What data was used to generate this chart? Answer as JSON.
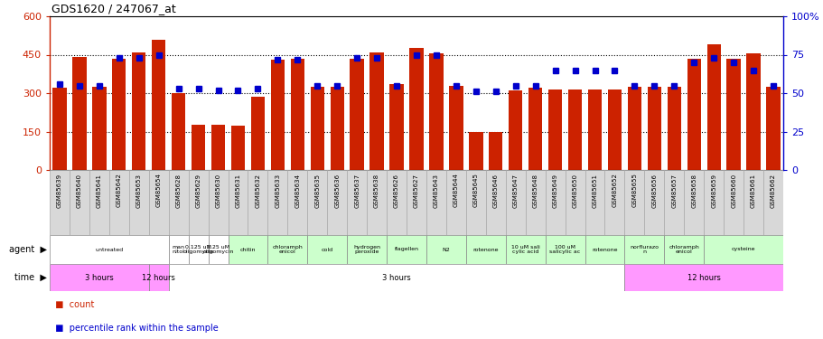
{
  "title": "GDS1620 / 247067_at",
  "samples": [
    "GSM85639",
    "GSM85640",
    "GSM85641",
    "GSM85642",
    "GSM85653",
    "GSM85654",
    "GSM85628",
    "GSM85629",
    "GSM85630",
    "GSM85631",
    "GSM85632",
    "GSM85633",
    "GSM85634",
    "GSM85635",
    "GSM85636",
    "GSM85637",
    "GSM85638",
    "GSM85626",
    "GSM85627",
    "GSM85643",
    "GSM85644",
    "GSM85645",
    "GSM85646",
    "GSM85647",
    "GSM85648",
    "GSM85649",
    "GSM85650",
    "GSM85651",
    "GSM85652",
    "GSM85655",
    "GSM85656",
    "GSM85657",
    "GSM85658",
    "GSM85659",
    "GSM85660",
    "GSM85661",
    "GSM85662"
  ],
  "counts": [
    320,
    440,
    325,
    435,
    460,
    510,
    300,
    175,
    178,
    172,
    285,
    430,
    435,
    325,
    325,
    435,
    460,
    335,
    475,
    455,
    330,
    148,
    148,
    310,
    320,
    315,
    315,
    315,
    315,
    325,
    325,
    325,
    435,
    490,
    435,
    455,
    325
  ],
  "percentiles": [
    56,
    55,
    55,
    73,
    73,
    75,
    53,
    53,
    52,
    52,
    53,
    72,
    72,
    55,
    55,
    73,
    73,
    55,
    75,
    75,
    55,
    51,
    51,
    55,
    55,
    65,
    65,
    65,
    65,
    55,
    55,
    55,
    70,
    73,
    70,
    65,
    55
  ],
  "bar_color": "#cc2200",
  "dot_color": "#0000cc",
  "yticks_left": [
    0,
    150,
    300,
    450,
    600
  ],
  "ytick_labels_left": [
    "0",
    "150",
    "300",
    "450",
    "600"
  ],
  "yticks_right": [
    0,
    25,
    50,
    75,
    100
  ],
  "ytick_labels_right": [
    "0",
    "25",
    "50",
    "75",
    "100%"
  ],
  "agent_groups": [
    {
      "label": "untreated",
      "start": 0,
      "end": 5,
      "color": "#ffffff"
    },
    {
      "label": "man\nnitol",
      "start": 6,
      "end": 6,
      "color": "#ffffff"
    },
    {
      "label": "0.125 uM\noligomycin",
      "start": 7,
      "end": 7,
      "color": "#ffffff"
    },
    {
      "label": "1.25 uM\noligomycin",
      "start": 8,
      "end": 8,
      "color": "#ffffff"
    },
    {
      "label": "chitin",
      "start": 9,
      "end": 10,
      "color": "#ccffcc"
    },
    {
      "label": "chloramph\nenicol",
      "start": 11,
      "end": 12,
      "color": "#ccffcc"
    },
    {
      "label": "cold",
      "start": 13,
      "end": 14,
      "color": "#ccffcc"
    },
    {
      "label": "hydrogen\nperoxide",
      "start": 15,
      "end": 16,
      "color": "#ccffcc"
    },
    {
      "label": "flagellen",
      "start": 17,
      "end": 18,
      "color": "#ccffcc"
    },
    {
      "label": "N2",
      "start": 19,
      "end": 20,
      "color": "#ccffcc"
    },
    {
      "label": "rotenone",
      "start": 21,
      "end": 22,
      "color": "#ccffcc"
    },
    {
      "label": "10 uM sali\ncylic acid",
      "start": 23,
      "end": 24,
      "color": "#ccffcc"
    },
    {
      "label": "100 uM\nsalicylic ac",
      "start": 25,
      "end": 26,
      "color": "#ccffcc"
    },
    {
      "label": "rotenone",
      "start": 27,
      "end": 28,
      "color": "#ccffcc"
    },
    {
      "label": "norflurazo\nn",
      "start": 29,
      "end": 30,
      "color": "#ccffcc"
    },
    {
      "label": "chloramph\nenicol",
      "start": 31,
      "end": 32,
      "color": "#ccffcc"
    },
    {
      "label": "cysteine",
      "start": 33,
      "end": 36,
      "color": "#ccffcc"
    }
  ],
  "time_groups": [
    {
      "label": "3 hours",
      "start": 0,
      "end": 4,
      "color": "#ff99ff"
    },
    {
      "label": "12 hours",
      "start": 5,
      "end": 5,
      "color": "#ff99ff"
    },
    {
      "label": "3 hours",
      "start": 6,
      "end": 28,
      "color": "#ffffff"
    },
    {
      "label": "12 hours",
      "start": 29,
      "end": 36,
      "color": "#ff99ff"
    }
  ]
}
